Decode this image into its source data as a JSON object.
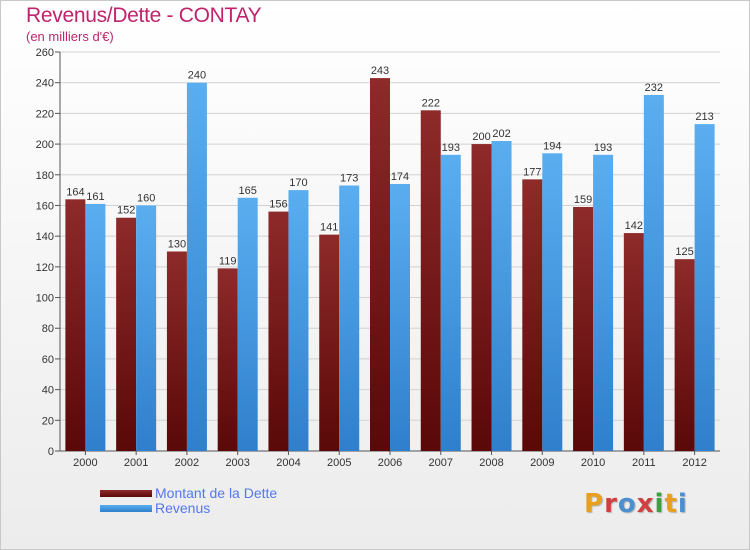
{
  "header": {
    "title": "Revenus/Dette - CONTAY",
    "subtitle": "(en milliers d'€)"
  },
  "colors": {
    "title": "#c0246c",
    "dette": "#7b2020",
    "revenus": "#4a9be0",
    "legend_text": "#5577ee"
  },
  "chart_data": {
    "type": "bar",
    "categories": [
      "2000",
      "2001",
      "2002",
      "2003",
      "2004",
      "2005",
      "2006",
      "2007",
      "2008",
      "2009",
      "2010",
      "2011",
      "2012"
    ],
    "series": [
      {
        "name": "Montant de la Dette",
        "values": [
          164,
          152,
          130,
          119,
          156,
          141,
          243,
          222,
          200,
          177,
          159,
          142,
          125
        ]
      },
      {
        "name": "Revenus",
        "values": [
          161,
          160,
          240,
          165,
          170,
          173,
          174,
          193,
          202,
          194,
          193,
          232,
          213
        ]
      }
    ],
    "ylim": [
      0,
      260
    ],
    "yticks": [
      0,
      20,
      40,
      60,
      80,
      100,
      120,
      140,
      160,
      180,
      200,
      220,
      240,
      260
    ],
    "grid": true,
    "legend_position": "bottom-left"
  },
  "legend": {
    "items": [
      {
        "label": "Montant de la Dette"
      },
      {
        "label": "Revenus"
      }
    ]
  },
  "logo": {
    "letters": [
      "P",
      "r",
      "o",
      "x",
      "i",
      "t",
      "i"
    ],
    "colors": [
      "#e8a020",
      "#d04040",
      "#4a90d0",
      "#d04040",
      "#3aa040",
      "#e8a020",
      "#4a90d0"
    ]
  }
}
